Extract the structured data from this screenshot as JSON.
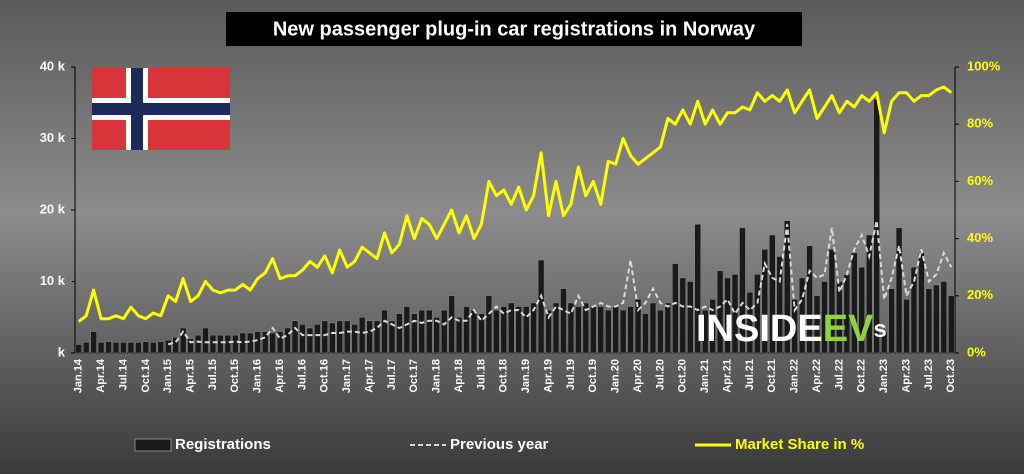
{
  "chart_data": {
    "type": "bar_line",
    "title": "New passenger plug-in car registrations in Norway",
    "logo": {
      "main": "INSIDE",
      "ev": "EV",
      "tail": "s"
    },
    "categories": [
      "Jan.14",
      null,
      null,
      "Apr.14",
      null,
      null,
      "Jul.14",
      null,
      null,
      "Oct.14",
      null,
      null,
      "Jan.15",
      null,
      null,
      "Apr.15",
      null,
      null,
      "Jul.15",
      null,
      null,
      "Oct.15",
      null,
      null,
      "Jan.16",
      null,
      null,
      "Apr.16",
      null,
      null,
      "Jul.16",
      null,
      null,
      "Oct.16",
      null,
      null,
      "Jan.17",
      null,
      null,
      "Apr.17",
      null,
      null,
      "Jul.17",
      null,
      null,
      "Oct.17",
      null,
      null,
      "Jan.18",
      null,
      null,
      "Apr.18",
      null,
      null,
      "Jul.18",
      null,
      null,
      "Oct.18",
      null,
      null,
      "Jan.19",
      null,
      null,
      "Apr.19",
      null,
      null,
      "Jul.19",
      null,
      null,
      "Oct.19",
      null,
      null,
      "Jan.20",
      null,
      null,
      "Apr.20",
      null,
      null,
      "Jul.20",
      null,
      null,
      "Oct.20",
      null,
      null,
      "Jan.21",
      null,
      null,
      "Apr.21",
      null,
      null,
      "Jul.21",
      null,
      null,
      "Oct.21",
      null,
      null,
      "Jan.22",
      null,
      null,
      "Apr.22",
      null,
      null,
      "Jul.22",
      null,
      null,
      "Oct.22",
      null,
      null,
      "Jan.23",
      null,
      null,
      "Apr.23",
      null,
      null,
      "Jul.23",
      null,
      null,
      "Oct.23"
    ],
    "series": [
      {
        "name": "Registrations",
        "kind": "bar",
        "color": "#1a1a1a",
        "values": [
          1200,
          1500,
          3000,
          1500,
          1600,
          1500,
          1500,
          1500,
          1500,
          1600,
          1500,
          1600,
          1800,
          2200,
          3500,
          2000,
          2500,
          3500,
          2500,
          2500,
          2500,
          2500,
          2800,
          2800,
          3000,
          3000,
          2800,
          3000,
          3500,
          4500,
          4000,
          3500,
          4000,
          4500,
          4200,
          4500,
          4500,
          4000,
          5000,
          4500,
          4500,
          6000,
          4500,
          5500,
          6500,
          5500,
          6000,
          6000,
          5000,
          6000,
          8000,
          5000,
          6500,
          6000,
          5500,
          8000,
          6000,
          6500,
          7000,
          6500,
          6500,
          7000,
          13000,
          6000,
          7000,
          9000,
          7000,
          6500,
          7000,
          6500,
          6500,
          6000,
          6500,
          6000,
          6500,
          7500,
          5500,
          7000,
          6000,
          7000,
          12500,
          10500,
          10000,
          18000,
          6000,
          7500,
          11500,
          10500,
          11000,
          17500,
          8500,
          11000,
          14500,
          16500,
          13500,
          18500,
          7500,
          10500,
          15000,
          8000,
          10000,
          14500,
          10000,
          11000,
          14000,
          12000,
          16500,
          35500,
          3000,
          9000,
          17500,
          7500,
          12000,
          14000,
          9000,
          9500,
          10000,
          8000
        ]
      },
      {
        "name": "Previous year",
        "kind": "dashed",
        "color": "#d9d9d9",
        "values": [
          null,
          null,
          null,
          null,
          null,
          null,
          null,
          null,
          null,
          null,
          null,
          null,
          1200,
          1500,
          3000,
          1500,
          1600,
          1500,
          1500,
          1500,
          1500,
          1600,
          1500,
          1600,
          1800,
          2200,
          3500,
          2000,
          2500,
          3500,
          2500,
          2500,
          2500,
          2500,
          2800,
          2800,
          3000,
          3000,
          2800,
          3000,
          3500,
          4500,
          4000,
          3500,
          4000,
          4500,
          4200,
          4500,
          4500,
          4000,
          5000,
          4500,
          4500,
          6000,
          4500,
          5500,
          6500,
          5500,
          6000,
          6000,
          5000,
          6000,
          8000,
          5000,
          6500,
          6000,
          5500,
          8000,
          6000,
          6500,
          7000,
          6500,
          6500,
          7000,
          13000,
          6000,
          7000,
          9000,
          7000,
          6500,
          7000,
          6500,
          6500,
          6000,
          6500,
          6000,
          6500,
          7500,
          5500,
          7000,
          6000,
          7000,
          12500,
          10500,
          10000,
          18000,
          6000,
          7500,
          11500,
          10500,
          11000,
          17500,
          8500,
          11000,
          14500,
          16500,
          13500,
          18500,
          7500,
          10500,
          15000,
          8000,
          10000,
          14500,
          10000,
          11000,
          14000,
          12000
        ]
      },
      {
        "name": "Market Share in %",
        "kind": "line",
        "axis": "y2",
        "color": "#ffff00",
        "values": [
          11,
          13,
          22,
          12,
          12,
          13,
          12,
          16,
          13,
          12,
          14,
          13,
          20,
          18,
          26,
          18,
          20,
          25,
          22,
          21,
          22,
          22,
          24,
          22,
          26,
          28,
          33,
          26,
          27,
          27,
          29,
          32,
          30,
          34,
          28,
          36,
          30,
          32,
          37,
          35,
          33,
          42,
          35,
          38,
          48,
          40,
          47,
          45,
          40,
          45,
          50,
          42,
          48,
          40,
          45,
          60,
          55,
          57,
          52,
          58,
          50,
          55,
          70,
          48,
          60,
          48,
          52,
          65,
          55,
          60,
          52,
          67,
          66,
          75,
          69,
          66,
          68,
          70,
          72,
          82,
          80,
          85,
          80,
          88,
          80,
          85,
          80,
          84,
          84,
          86,
          85,
          91,
          88,
          90,
          88,
          92,
          84,
          88,
          92,
          82,
          86,
          90,
          84,
          88,
          86,
          90,
          88,
          91,
          77,
          88,
          91,
          91,
          88,
          90,
          90,
          92,
          93,
          91
        ]
      }
    ],
    "ylim": [
      0,
      40000
    ],
    "yticks": [
      {
        "value": 0,
        "label": "k"
      },
      {
        "value": 10000,
        "label": "10 k"
      },
      {
        "value": 20000,
        "label": "20 k"
      },
      {
        "value": 30000,
        "label": "30 k"
      },
      {
        "value": 40000,
        "label": "40 k"
      }
    ],
    "y2lim": [
      0,
      100
    ],
    "y2ticks": [
      {
        "value": 0,
        "label": "0%"
      },
      {
        "value": 20,
        "label": "20%"
      },
      {
        "value": 40,
        "label": "40%"
      },
      {
        "value": 60,
        "label": "60%"
      },
      {
        "value": 80,
        "label": "80%"
      },
      {
        "value": 100,
        "label": "100%"
      }
    ],
    "legend": "bottom"
  }
}
